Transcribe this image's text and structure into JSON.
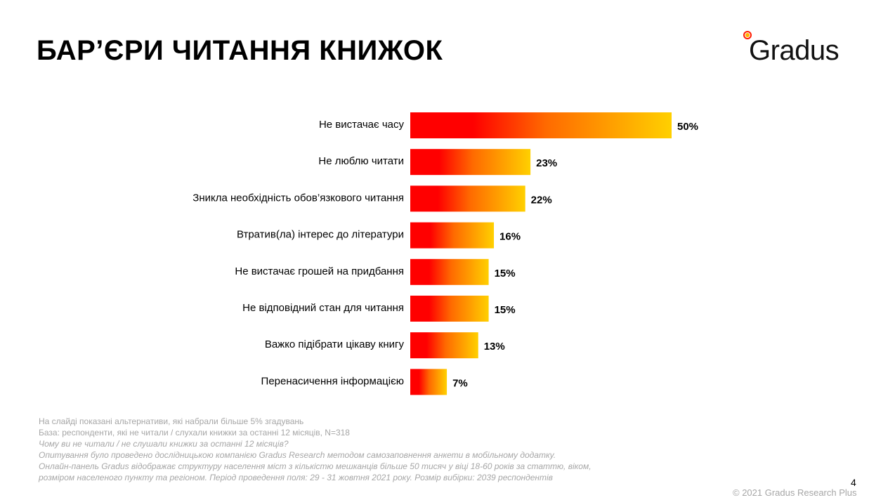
{
  "slide": {
    "title": "БАР’ЄРИ ЧИТАННЯ КНИЖОК",
    "logo_text": "Gradus",
    "page_number": "4",
    "copyright": "© 2021 Gradus Research Plus"
  },
  "footnotes": [
    "На слайді показані альтернативи, які набрали більше 5% згадувань",
    "База:  респонденти, які не читали / слухали книжки за останні 12 місяців, N=318",
    "Чому ви не читали / не слушали книжки за останні 12 місяців?",
    "Опитування  було  проведено  дослідницькою  компанією  Gradus  Research методом самозаповнення анкети в мобільному додатку.",
    "Онлайн-панель Gradus відображає структуру населення міст з кількістю мешканців більше 50 тисяч у віці 18-60 років за статтю, віком,",
    "розміром населеного пункту та регіоном. Період проведення поля: 29 - 31 жовтня 2021 року. Розмір вибірки: 2039 респондентів"
  ],
  "colors": {
    "bar_start": "#ff0000",
    "bar_mid": "#ff6a00",
    "bar_end": "#ffd000",
    "footnote": "#a6a6a6"
  },
  "chart_data": {
    "type": "bar",
    "orientation": "horizontal",
    "categories": [
      "Не вистачає часу",
      "Не люблю читати",
      "Зникла необхідність обов’язкового читання",
      "Втратив(ла) інтерес до літератури",
      "Не вистачає грошей на придбання",
      "Не відповідний стан для читання",
      "Важко підібрати цікаву книгу",
      "Перенасичення інформацією"
    ],
    "values": [
      50,
      23,
      22,
      16,
      15,
      15,
      13,
      7
    ],
    "value_labels": [
      "50%",
      "23%",
      "22%",
      "16%",
      "15%",
      "15%",
      "13%",
      "7%"
    ],
    "unit": "%",
    "xlim": [
      0,
      50
    ],
    "grid": false,
    "legend": "none"
  }
}
